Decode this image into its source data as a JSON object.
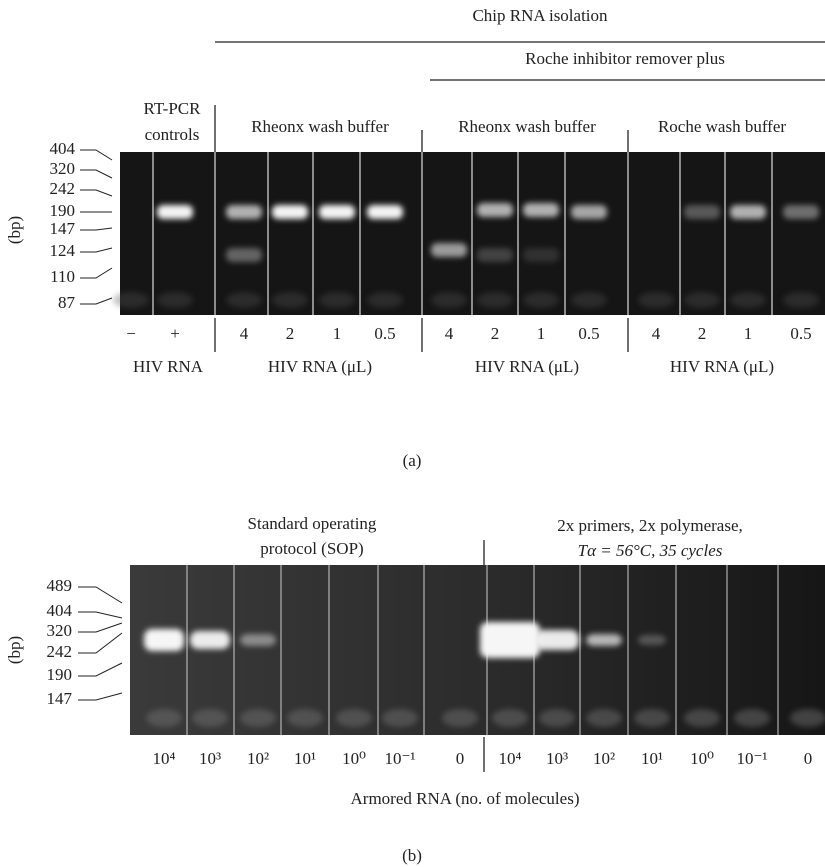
{
  "panel_a": {
    "header": "Chip RNA isolation",
    "subheader": "Roche inhibitor remover plus",
    "groups": [
      "RT-PCR",
      "controls",
      "Rheonx wash buffer",
      "Rheonx wash buffer",
      "Roche wash buffer"
    ],
    "axis_label": "(bp)",
    "bp_markers": [
      404,
      320,
      242,
      190,
      147,
      124,
      110,
      87
    ],
    "lanes": [
      "−",
      "+",
      "4",
      "2",
      "1",
      "0.5",
      "4",
      "2",
      "1",
      "0.5",
      "4",
      "2",
      "1",
      "0.5"
    ],
    "lane_groups": [
      "HIV RNA",
      "HIV RNA (μL)",
      "HIV RNA (μL)",
      "HIV RNA (μL)"
    ],
    "caption": "(a)"
  },
  "panel_b": {
    "groups": [
      "Standard operating",
      "protocol (SOP)",
      "2x primers, 2x polymerase,",
      "Tα = 56°C, 35 cycles"
    ],
    "axis_label": "(bp)",
    "bp_markers": [
      489,
      404,
      320,
      242,
      190,
      147
    ],
    "lanes": [
      "10⁴",
      "10³",
      "10²",
      "10¹",
      "10⁰",
      "10⁻¹",
      "0",
      "10⁴",
      "10³",
      "10²",
      "10¹",
      "10⁰",
      "10⁻¹",
      "0"
    ],
    "x_label": "Armored RNA (no. of molecules)",
    "caption": "(b)"
  }
}
